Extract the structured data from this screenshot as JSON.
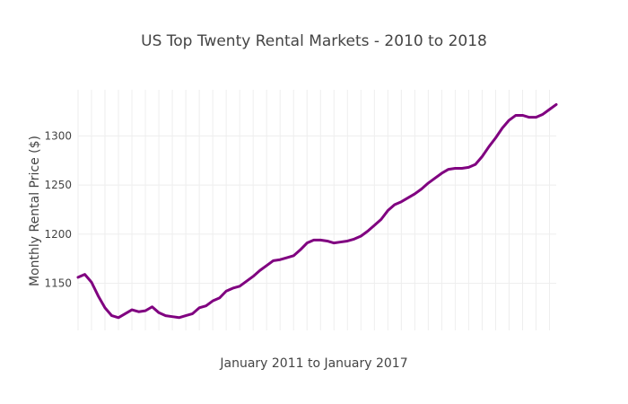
{
  "chart_data": {
    "type": "line",
    "title": "US Top Twenty Rental Markets - 2010 to 2018",
    "xlabel": "January 2011 to January 2017",
    "ylabel": "Monthly Rental Price ($)",
    "ylim": [
      1102,
      1347
    ],
    "y_ticks": [
      1150,
      1200,
      1250,
      1300
    ],
    "grid": true,
    "legend": "none",
    "series": [
      {
        "color": "#800080",
        "x": [
          0,
          1,
          2,
          3,
          4,
          5,
          6,
          7,
          8,
          9,
          10,
          11,
          12,
          13,
          14,
          15,
          16,
          17,
          18,
          19,
          20,
          21,
          22,
          23,
          24,
          25,
          26,
          27,
          28,
          29,
          30,
          31,
          32,
          33,
          34,
          35,
          36,
          37,
          38,
          39,
          40,
          41,
          42,
          43,
          44,
          45,
          46,
          47,
          48,
          49,
          50,
          51,
          52,
          53,
          54,
          55,
          56,
          57,
          58,
          59,
          60,
          61,
          62,
          63,
          64,
          65,
          66,
          67,
          68,
          69,
          70,
          71
        ],
        "values": [
          1156,
          1159,
          1151,
          1137,
          1125,
          1117,
          1115,
          1119,
          1123,
          1121,
          1122,
          1126,
          1120,
          1117,
          1116,
          1115,
          1117,
          1119,
          1125,
          1127,
          1132,
          1135,
          1142,
          1145,
          1147,
          1152,
          1157,
          1163,
          1168,
          1173,
          1174,
          1176,
          1178,
          1184,
          1191,
          1194,
          1194,
          1193,
          1191,
          1192,
          1193,
          1195,
          1198,
          1203,
          1209,
          1215,
          1224,
          1230,
          1233,
          1237,
          1241,
          1246,
          1252,
          1257,
          1262,
          1266,
          1267,
          1267,
          1268,
          1271,
          1279,
          1289,
          1298,
          1308,
          1316,
          1321,
          1321,
          1319,
          1319,
          1322,
          1327,
          1332
        ]
      }
    ]
  }
}
